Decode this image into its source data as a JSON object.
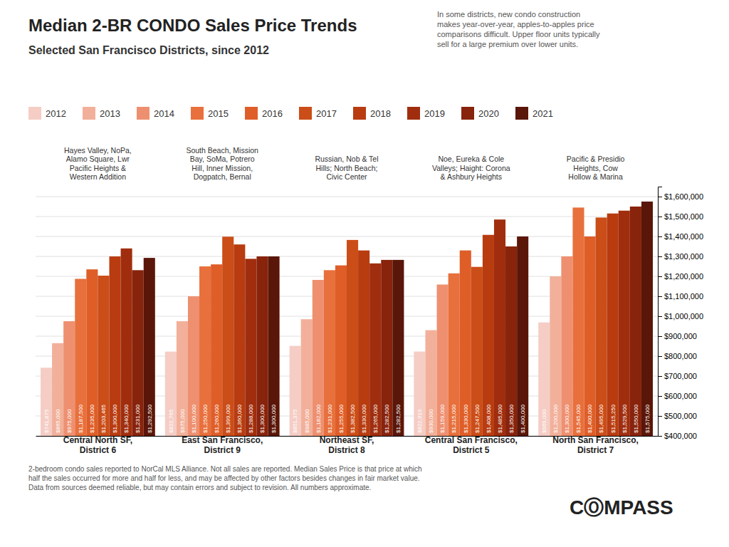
{
  "chart_data": {
    "type": "bar",
    "title": "Median 2-BR CONDO Sales Price Trends",
    "subtitle": "Selected San Francisco Districts, since 2012",
    "categories": [
      "Central North SF,\nDistrict 6",
      "East San Francisco,\nDistrict 9",
      "Northeast SF,\nDistrict 8",
      "Central San Francisco,\nDistrict 5",
      "North San Francisco,\nDistrict 7"
    ],
    "series": [
      {
        "name": "2012",
        "color": "#f5cdc5",
        "values": [
          741875,
          822765,
          851375,
          822919,
          969000
        ],
        "value_labels": [
          "$741,875",
          "$822,765",
          "$851,375",
          "$822,919",
          "$969,000"
        ]
      },
      {
        "name": "2013",
        "color": "#f2b09a",
        "values": [
          865000,
          975000,
          985000,
          930000,
          1200000
        ],
        "value_labels": [
          "$865,000",
          "$975,000",
          "$985,000",
          "$930,000",
          "$1,200,000"
        ]
      },
      {
        "name": "2014",
        "color": "#ee9070",
        "values": [
          975000,
          1100000,
          1182000,
          1159000,
          1300000
        ],
        "value_labels": [
          "$975,000",
          "$1,100,000",
          "$1,182,000",
          "$1,159,000",
          "$1,300,000"
        ]
      },
      {
        "name": "2015",
        "color": "#e8703c",
        "values": [
          1187500,
          1250000,
          1231000,
          1215000,
          1545000
        ],
        "value_labels": [
          "$1,187,500",
          "$1,250,000",
          "$1,231,000",
          "$1,215,000",
          "$1,545,000"
        ]
      },
      {
        "name": "2016",
        "color": "#df5e28",
        "values": [
          1235000,
          1260000,
          1255000,
          1330000,
          1400000
        ],
        "value_labels": [
          "$1,235,000",
          "$1,260,000",
          "$1,255,000",
          "$1,330,000",
          "$1,400,000"
        ]
      },
      {
        "name": "2017",
        "color": "#cb4d18",
        "values": [
          1203465,
          1399000,
          1382500,
          1247500,
          1495000
        ],
        "value_labels": [
          "$1,203,465",
          "$1,399,000",
          "$1,382,500",
          "$1,247,500",
          "$1,495,000"
        ]
      },
      {
        "name": "2018",
        "color": "#b83c10",
        "values": [
          1300000,
          1360000,
          1330000,
          1408000,
          1515250
        ],
        "value_labels": [
          "$1,300,000",
          "$1,360,000",
          "$1,330,000",
          "$1,408,000",
          "$1,515,250"
        ]
      },
      {
        "name": "2019",
        "color": "#a02e0e",
        "values": [
          1340000,
          1288000,
          1265000,
          1485000,
          1529500
        ],
        "value_labels": [
          "$1,340,000",
          "$1,288,000",
          "$1,265,000",
          "$1,485,000",
          "$1,529,500"
        ]
      },
      {
        "name": "2020",
        "color": "#88230c",
        "values": [
          1231000,
          1300000,
          1282500,
          1350000,
          1550000
        ],
        "value_labels": [
          "$1,231,000",
          "$1,300,000",
          "$1,282,500",
          "$1,350,000",
          "$1,550,000"
        ]
      },
      {
        "name": "2021",
        "color": "#5a1608",
        "values": [
          1292500,
          1300000,
          1282500,
          1400000,
          1575000
        ],
        "value_labels": [
          "$1,292,500",
          "$1,300,000",
          "$1,282,500",
          "$1,400,000",
          "$1,575,000"
        ]
      }
    ],
    "ylim": [
      400000,
      1650000
    ],
    "yticks": [
      {
        "value": 400000,
        "label": "$400,000"
      },
      {
        "value": 500000,
        "label": "$500,000"
      },
      {
        "value": 600000,
        "label": "$600,000"
      },
      {
        "value": 700000,
        "label": "$700,000"
      },
      {
        "value": 800000,
        "label": "$800,000"
      },
      {
        "value": 900000,
        "label": "$900,000"
      },
      {
        "value": 1000000,
        "label": "$1,000,000"
      },
      {
        "value": 1100000,
        "label": "$1,100,000"
      },
      {
        "value": 1200000,
        "label": "$1,200,000"
      },
      {
        "value": 1300000,
        "label": "$1,300,000"
      },
      {
        "value": 1400000,
        "label": "$1,400,000"
      },
      {
        "value": 1500000,
        "label": "$1,500,000"
      },
      {
        "value": 1600000,
        "label": "$1,600,000"
      }
    ],
    "grid": true,
    "legend": "top",
    "data_labels": true,
    "annotations": [
      {
        "text": "Hayes Valley, NoPa,\nAlamo Square, Lwr\nPacific Heights &\nWestern Addition",
        "category": "Central North SF,\nDistrict 6"
      },
      {
        "text": "South Beach, Mission\nBay, SoMa, Potrero\nHill, Inner Mission,\nDogpatch, Bernal",
        "category": "East San Francisco,\nDistrict 9"
      },
      {
        "text": "Russian, Nob & Tel\nHills; North Beach;\nCivic Center",
        "category": "Northeast SF,\nDistrict 8"
      },
      {
        "text": "Noe, Eureka & Cole\nValleys; Haight: Corona\n& Ashbury Heights",
        "category": "Central San Francisco,\nDistrict 5"
      },
      {
        "text": "Pacific & Presidio\nHeights, Cow\nHollow & Marina",
        "category": "North San Francisco,\nDistrict 7"
      },
      {
        "text": "In some districts, new condo construction\nmakes year-over-year, apples-to-apples price\ncomparisons difficult. Upper floor units typically\nsell for a large premium over lower units."
      },
      {
        "text": "2-bedroom condo sales reported to NorCal MLS Alliance. Not all sales are reported. Median Sales Price is that price at which\nhalf the sales occurred for more and half for less, and may be affected by other factors besides changes in fair market value.\nData from sources deemed reliable, but may contain errors and subject to revision.  All numbers approximate."
      },
      {
        "text": "CⓄMPASS"
      }
    ]
  }
}
